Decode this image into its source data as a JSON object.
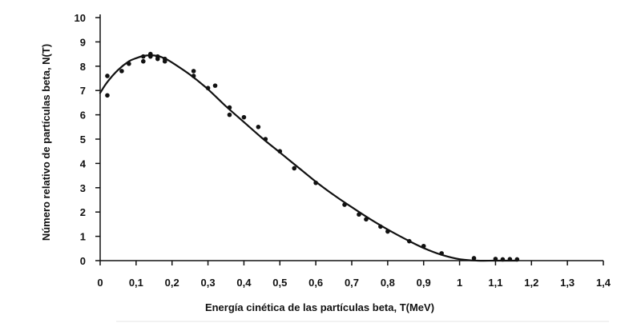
{
  "chart_data": {
    "type": "scatter",
    "title": "",
    "xlabel": "Energía cinética de las partículas beta, T(MeV)",
    "ylabel": "Número relativo de partículas beta, N(T)",
    "xlim": [
      0,
      1.4
    ],
    "ylim": [
      0,
      10
    ],
    "x_ticks": [
      "0",
      "0,1",
      "0,2",
      "0,3",
      "0,4",
      "0,5",
      "0,6",
      "0,7",
      "0,8",
      "0,9",
      "1",
      "1,1",
      "1,2",
      "1,3",
      "1,4"
    ],
    "y_ticks": [
      "0",
      "1",
      "2",
      "3",
      "4",
      "5",
      "6",
      "7",
      "8",
      "9",
      "10"
    ],
    "grid": false,
    "legend": "none",
    "colors": {
      "marks": "#111111",
      "axis": "#111111",
      "background": "#ffffff"
    },
    "series": [
      {
        "kind": "points",
        "x": [
          0.02,
          0.02,
          0.06,
          0.08,
          0.12,
          0.12,
          0.14,
          0.14,
          0.16,
          0.16,
          0.18,
          0.18,
          0.26,
          0.26,
          0.3,
          0.32,
          0.36,
          0.36,
          0.4,
          0.44,
          0.46,
          0.5,
          0.54,
          0.6,
          0.68,
          0.72,
          0.74,
          0.78,
          0.8,
          0.86,
          0.9,
          0.95,
          1.04,
          1.1,
          1.12,
          1.14,
          1.16
        ],
        "y": [
          7.6,
          6.8,
          7.8,
          8.1,
          8.4,
          8.2,
          8.5,
          8.4,
          8.4,
          8.3,
          8.3,
          8.2,
          7.8,
          7.6,
          7.1,
          7.2,
          6.0,
          6.3,
          5.9,
          5.5,
          5.0,
          4.5,
          3.8,
          3.2,
          2.3,
          1.9,
          1.7,
          1.4,
          1.2,
          0.8,
          0.6,
          0.3,
          0.1,
          0.07,
          0.05,
          0.06,
          0.05
        ]
      },
      {
        "kind": "fit-curve",
        "x": [
          0.0,
          0.02,
          0.05,
          0.08,
          0.1,
          0.12,
          0.14,
          0.16,
          0.18,
          0.2,
          0.25,
          0.3,
          0.35,
          0.4,
          0.45,
          0.5,
          0.55,
          0.6,
          0.65,
          0.7,
          0.75,
          0.8,
          0.85,
          0.9,
          0.95,
          1.0,
          1.05,
          1.1,
          1.16
        ],
        "y": [
          6.9,
          7.35,
          7.85,
          8.2,
          8.33,
          8.42,
          8.45,
          8.42,
          8.32,
          8.15,
          7.65,
          7.05,
          6.35,
          5.7,
          5.05,
          4.45,
          3.85,
          3.25,
          2.7,
          2.2,
          1.72,
          1.28,
          0.88,
          0.52,
          0.24,
          0.06,
          0.0,
          0.0,
          0.0
        ]
      }
    ]
  }
}
